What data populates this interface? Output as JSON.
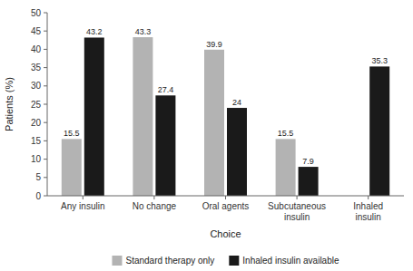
{
  "chart_data": {
    "type": "bar",
    "xlabel": "Choice",
    "ylabel": "Patients (%)",
    "categories": [
      "Any insulin",
      "No change",
      "Oral agents",
      "Subcutaneous\ninsulin",
      "Inhaled\ninsulin"
    ],
    "series": [
      {
        "name": "Standard therapy only",
        "color": "#b3b3b3",
        "values": [
          15.5,
          43.3,
          39.9,
          15.5,
          null
        ]
      },
      {
        "name": "Inhaled insulin available",
        "color": "#1a1a1a",
        "values": [
          43.2,
          27.4,
          24,
          7.9,
          35.3
        ]
      }
    ],
    "ylim": [
      0,
      50
    ],
    "yticks": [
      0,
      5,
      10,
      15,
      20,
      25,
      30,
      35,
      40,
      45,
      50
    ],
    "data_labels": true,
    "grid": false,
    "legend": "bottom"
  }
}
